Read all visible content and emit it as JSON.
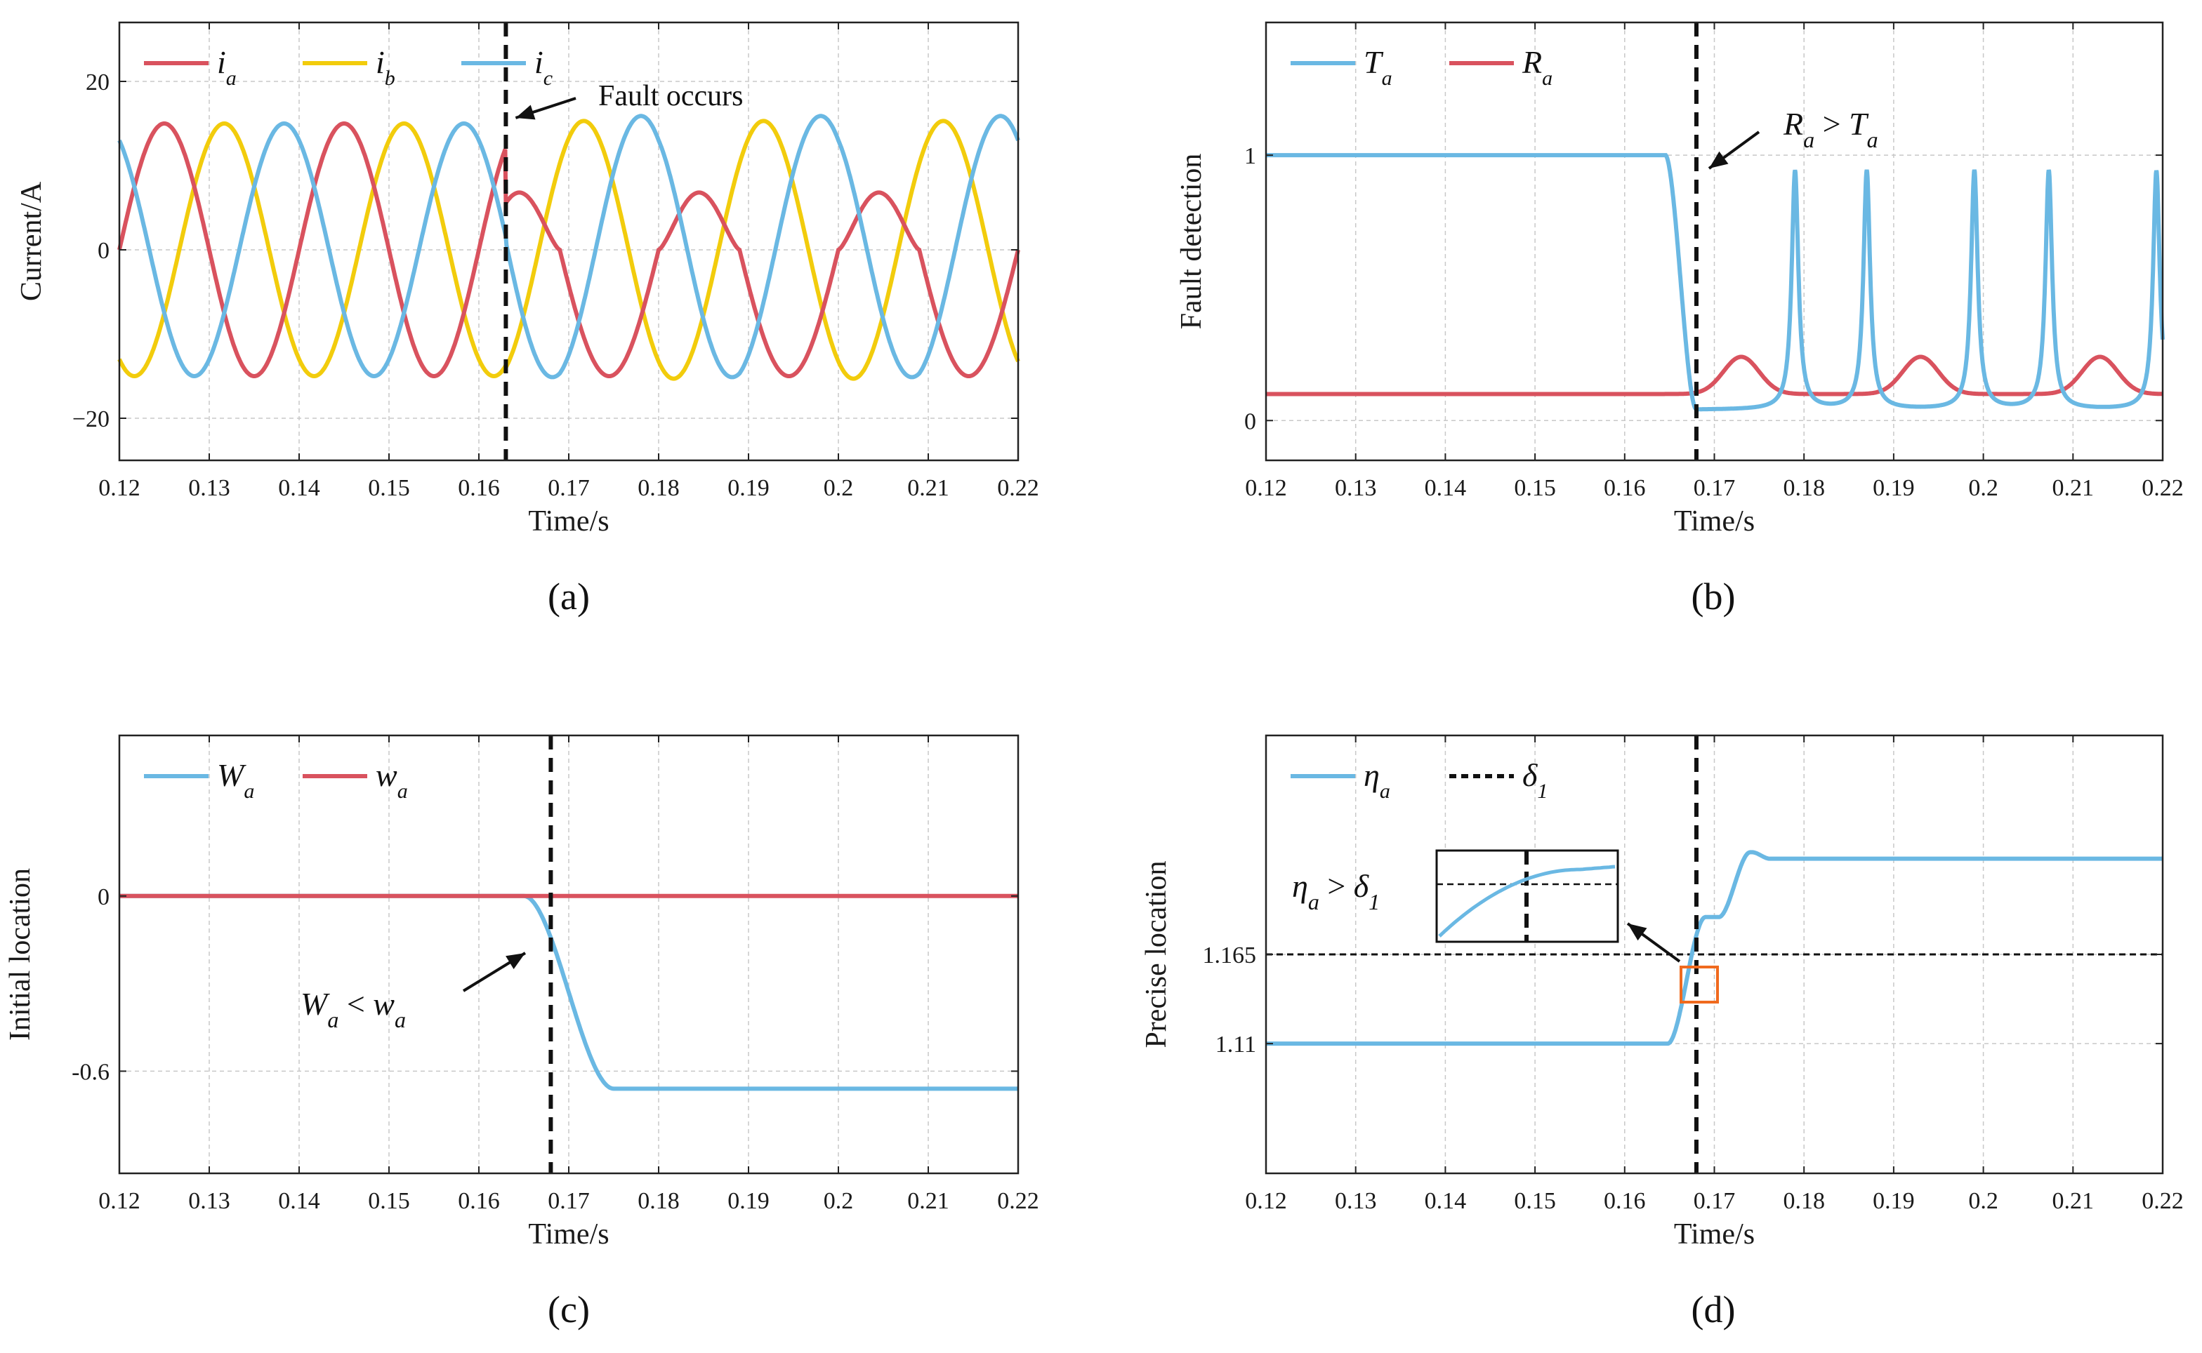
{
  "colors": {
    "red": "#d9525e",
    "yellow": "#f2cc0c",
    "blue": "#6ab8e3",
    "orange": "#f06a1e",
    "black": "#111111"
  },
  "chart_data": [
    {
      "type": "line",
      "panel_label": "(a)",
      "xlabel": "Time/s",
      "ylabel": "Current/A",
      "xlim": [
        0.12,
        0.22
      ],
      "ylim": [
        -25,
        27
      ],
      "xticks": [
        0.12,
        0.13,
        0.14,
        0.15,
        0.16,
        0.17,
        0.18,
        0.19,
        0.2,
        0.21,
        0.22
      ],
      "xtick_labels": [
        "0.12",
        "0.13",
        "0.14",
        "0.15",
        "0.16",
        "0.17",
        "0.18",
        "0.19",
        "0.2",
        "0.21",
        "0.22"
      ],
      "yticks": [
        -20,
        0,
        20
      ],
      "ytick_labels": [
        "−20",
        "0",
        "20"
      ],
      "series": [
        {
          "name": "i_a",
          "label_main": "i",
          "label_sub": "a",
          "color": "#d9525e",
          "amplitude": 15,
          "phase_deg": 0,
          "faulted_shape": true
        },
        {
          "name": "i_b",
          "label_main": "i",
          "label_sub": "b",
          "color": "#f2cc0c",
          "amplitude": 15,
          "phase_deg": -120
        },
        {
          "name": "i_c",
          "label_main": "i",
          "label_sub": "c",
          "color": "#6ab8e3",
          "amplitude": 15,
          "phase_deg": 120
        }
      ],
      "frequency_hz": 50,
      "vline_x": 0.163,
      "annotation": "Fault occurs"
    },
    {
      "type": "line",
      "panel_label": "(b)",
      "xlabel": "Time/s",
      "ylabel": "Fault detection",
      "xlim": [
        0.12,
        0.22
      ],
      "ylim": [
        -0.15,
        1.5
      ],
      "xticks": [
        0.12,
        0.13,
        0.14,
        0.15,
        0.16,
        0.17,
        0.18,
        0.19,
        0.2,
        0.21,
        0.22
      ],
      "xtick_labels": [
        "0.12",
        "0.13",
        "0.14",
        "0.15",
        "0.16",
        "0.17",
        "0.18",
        "0.19",
        "0.2",
        "0.21",
        "0.22"
      ],
      "yticks": [
        0,
        1
      ],
      "ytick_labels": [
        "0",
        "1"
      ],
      "series": [
        {
          "name": "T_a",
          "label_main": "T",
          "label_sub": "a",
          "color": "#6ab8e3",
          "pre_fault": 1.0,
          "drop_time": 0.1645,
          "spikes": [
            0.179,
            0.187,
            0.199,
            0.2073,
            0.2193
          ]
        },
        {
          "name": "R_a",
          "label_main": "R",
          "label_sub": "a",
          "color": "#d9525e",
          "pre_fault": 0.1,
          "bumps": [
            0.173,
            0.193,
            0.213
          ],
          "bump_peak": 0.24
        }
      ],
      "vline_x": 0.168,
      "annotation_main": "R",
      "annotation_sub": "a",
      "annotation_op": ">",
      "annotation_main2": "T",
      "annotation_sub2": "a"
    },
    {
      "type": "line",
      "panel_label": "(c)",
      "xlabel": "Time/s",
      "ylabel": "Initial location",
      "xlim": [
        0.12,
        0.22
      ],
      "ylim": [
        -0.95,
        0.55
      ],
      "xticks": [
        0.12,
        0.13,
        0.14,
        0.15,
        0.16,
        0.17,
        0.18,
        0.19,
        0.2,
        0.21,
        0.22
      ],
      "xtick_labels": [
        "0.12",
        "0.13",
        "0.14",
        "0.15",
        "0.16",
        "0.17",
        "0.18",
        "0.19",
        "0.2",
        "0.21",
        "0.22"
      ],
      "yticks": [
        -0.6,
        0
      ],
      "ytick_labels": [
        "-0.6",
        "0"
      ],
      "series": [
        {
          "name": "W_a",
          "label_main": "W",
          "label_sub": "a",
          "color": "#6ab8e3",
          "start": 0,
          "end": -0.66,
          "transition": [
            0.165,
            0.175
          ]
        },
        {
          "name": "w_a",
          "label_main": "w",
          "label_sub": "a",
          "color": "#d9525e",
          "constant": 0
        }
      ],
      "vline_x": 0.168,
      "annotation_main": "W",
      "annotation_sub": "a",
      "annotation_op": "<",
      "annotation_main2": "w",
      "annotation_sub2": "a"
    },
    {
      "type": "line",
      "panel_label": "(d)",
      "xlabel": "Time/s",
      "ylabel": "Precise location",
      "xlim": [
        0.12,
        0.22
      ],
      "ylim": [
        1.03,
        1.3
      ],
      "xticks": [
        0.12,
        0.13,
        0.14,
        0.15,
        0.16,
        0.17,
        0.18,
        0.19,
        0.2,
        0.21,
        0.22
      ],
      "xtick_labels": [
        "0.12",
        "0.13",
        "0.14",
        "0.15",
        "0.16",
        "0.17",
        "0.18",
        "0.19",
        "0.2",
        "0.21",
        "0.22"
      ],
      "yticks": [
        1.11,
        1.165
      ],
      "ytick_labels": [
        "1.11",
        "1.165"
      ],
      "series": [
        {
          "name": "eta_a",
          "label_main": "η",
          "label_sub": "a",
          "color": "#6ab8e3",
          "start": 1.11,
          "plateau": 1.188,
          "end": 1.225,
          "transition": [
            0.165,
            0.175
          ]
        },
        {
          "name": "delta_1",
          "label_main": "δ",
          "label_sub": "1",
          "color": "#111111",
          "constant": 1.165,
          "dashed": true
        }
      ],
      "vline_x": 0.168,
      "annotation_main": "η",
      "annotation_sub": "a",
      "annotation_op": ">",
      "annotation_main2": "δ",
      "annotation_sub2": "1"
    }
  ]
}
